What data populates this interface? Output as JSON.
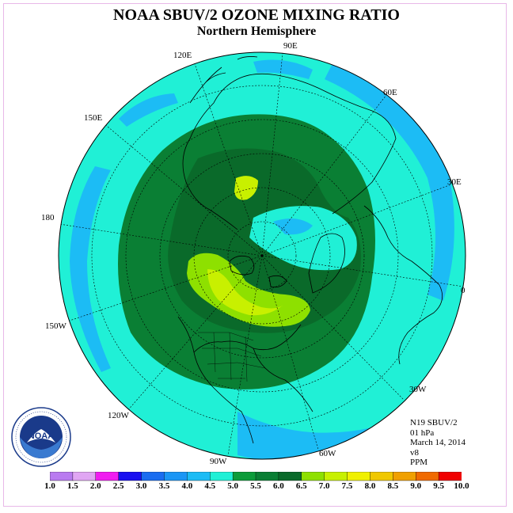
{
  "title": "NOAA SBUV/2 OZONE MIXING RATIO",
  "subtitle": "Northern Hemisphere",
  "longitude_labels": [
    "90E",
    "60E",
    "30E",
    "0",
    "30W",
    "60W",
    "90W",
    "120W",
    "150W",
    "180",
    "150E",
    "120E"
  ],
  "info": {
    "instrument": "N19 SBUV/2",
    "level": "01 hPa",
    "date": "March 14, 2014",
    "version": "v8",
    "units": "PPM"
  },
  "logo_text": "NOAA",
  "colorbar": {
    "labels": [
      "1.0",
      "1.5",
      "2.0",
      "2.5",
      "3.0",
      "3.5",
      "4.0",
      "4.5",
      "5.0",
      "5.5",
      "6.0",
      "6.5",
      "7.0",
      "7.5",
      "8.0",
      "8.5",
      "9.0",
      "9.5",
      "10.0"
    ],
    "colors": [
      "#b97bf0",
      "#e0a6f3",
      "#f01cf0",
      "#1a10f0",
      "#1a6df0",
      "#1b96f5",
      "#1cbcf5",
      "#20f0d6",
      "#0c9c3a",
      "#0a7f34",
      "#0a6a2a",
      "#8ee000",
      "#c8f000",
      "#f0f000",
      "#f0c800",
      "#f0a000",
      "#f06a00",
      "#f00000",
      "#8a5a3c"
    ]
  },
  "colors": {
    "ocean_background": "#20f0d6",
    "outer_band": "#1cbcf5",
    "mid_green": "#0a7f34",
    "dark_green": "#0a6a2a",
    "light_green": "#8ee000",
    "yellow_green": "#c8f000"
  }
}
